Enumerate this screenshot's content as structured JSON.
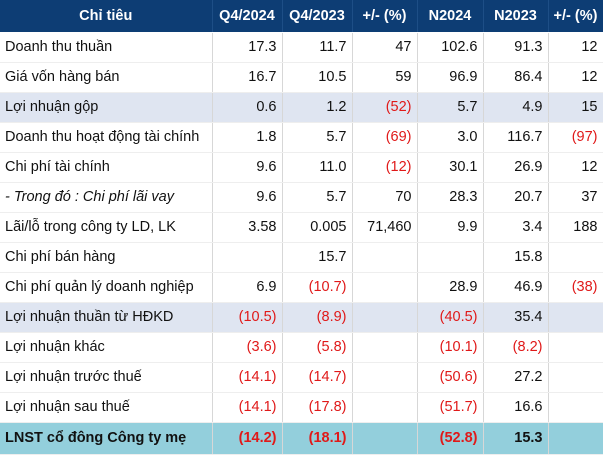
{
  "headers": [
    "Chỉ tiêu",
    "Q4/2024",
    "Q4/2023",
    "+/- (%)",
    "N2024",
    "N2023",
    "+/- (%)"
  ],
  "rows": [
    {
      "label": "Doanh thu thuần",
      "cells": [
        "17.3",
        "11.7",
        "47",
        "102.6",
        "91.3",
        "12"
      ],
      "shade": false,
      "italic": false
    },
    {
      "label": "Giá vốn hàng bán",
      "cells": [
        "16.7",
        "10.5",
        "59",
        "96.9",
        "86.4",
        "12"
      ],
      "shade": false,
      "italic": false
    },
    {
      "label": "Lợi nhuận gộp",
      "cells": [
        "0.6",
        "1.2",
        "(52)",
        "5.7",
        "4.9",
        "15"
      ],
      "shade": true,
      "italic": false
    },
    {
      "label": "Doanh thu hoạt động tài chính",
      "cells": [
        "1.8",
        "5.7",
        "(69)",
        "3.0",
        "116.7",
        "(97)"
      ],
      "shade": false,
      "italic": false
    },
    {
      "label": "Chi phí tài chính",
      "cells": [
        "9.6",
        "11.0",
        "(12)",
        "30.1",
        "26.9",
        "12"
      ],
      "shade": false,
      "italic": false
    },
    {
      "label": "- Trong đó : Chi phí lãi vay",
      "cells": [
        "9.6",
        "5.7",
        "70",
        "28.3",
        "20.7",
        "37"
      ],
      "shade": false,
      "italic": true
    },
    {
      "label": "Lãi/lỗ trong công ty LD, LK",
      "cells": [
        "3.58",
        "0.005",
        "71,460",
        "9.9",
        "3.4",
        "188"
      ],
      "shade": false,
      "italic": false
    },
    {
      "label": "Chi phí bán hàng",
      "cells": [
        "",
        "15.7",
        "",
        "",
        "15.8",
        ""
      ],
      "shade": false,
      "italic": false
    },
    {
      "label": "Chi phí quản lý doanh nghiệp",
      "cells": [
        "6.9",
        "(10.7)",
        "",
        "28.9",
        "46.9",
        "(38)"
      ],
      "shade": false,
      "italic": false
    },
    {
      "label": "Lợi nhuận thuần từ HĐKD",
      "cells": [
        "(10.5)",
        "(8.9)",
        "",
        "(40.5)",
        "35.4",
        ""
      ],
      "shade": true,
      "italic": false
    },
    {
      "label": "Lợi nhuận khác",
      "cells": [
        "(3.6)",
        "(5.8)",
        "",
        "(10.1)",
        "(8.2)",
        ""
      ],
      "shade": false,
      "italic": false
    },
    {
      "label": "Lợi nhuận trước thuế",
      "cells": [
        "(14.1)",
        "(14.7)",
        "",
        "(50.6)",
        "27.2",
        ""
      ],
      "shade": false,
      "italic": false
    },
    {
      "label": "Lợi nhuận sau thuế",
      "cells": [
        "(14.1)",
        "(17.8)",
        "",
        "(51.7)",
        "16.6",
        ""
      ],
      "shade": false,
      "italic": false
    }
  ],
  "final_row": {
    "label": "LNST cổ đông Công ty mẹ",
    "cells": [
      "(14.2)",
      "(18.1)",
      "",
      "(52.8)",
      "15.3",
      ""
    ]
  }
}
